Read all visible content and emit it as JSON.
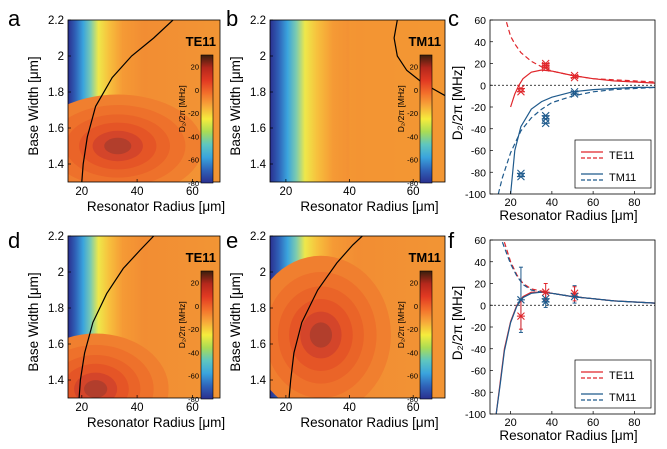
{
  "figure": {
    "colorbar_units_label": "D₂/2π [MHz]",
    "colorbar_ticks": [
      "20",
      "0",
      "-20",
      "-40",
      "-60",
      "-80"
    ],
    "colorbar_stops": [
      "#3a1f0c",
      "#b5281c",
      "#e23a22",
      "#f3702b",
      "#f7a93a",
      "#f6ec3c",
      "#a9dc55",
      "#5ec6c0",
      "#3aa4dd",
      "#2f62b8",
      "#2a2f8e"
    ]
  },
  "chart_data": [
    {
      "panel_letter": "a",
      "type": "heatmap",
      "label": "TE11",
      "xlabel": "Resonator Radius [μm]",
      "ylabel": "Base Width [μm]",
      "xlim": [
        15,
        70
      ],
      "ylim": [
        1.3,
        2.2
      ],
      "x_ticks": [
        20,
        40,
        60
      ],
      "y_ticks": [
        1.4,
        1.6,
        1.8,
        2,
        2.2
      ],
      "x_tick_labels": [
        "20",
        "40",
        "60"
      ],
      "y_tick_labels": [
        "1.4",
        "1.6",
        "1.8",
        "2",
        "2.2"
      ],
      "colorbar_range": [
        -80,
        30
      ],
      "zero_contour": [
        [
          20,
          1.3
        ],
        [
          20.5,
          1.4
        ],
        [
          22,
          1.55
        ],
        [
          25,
          1.72
        ],
        [
          31,
          1.88
        ],
        [
          38,
          2.0
        ],
        [
          46,
          2.1
        ],
        [
          53,
          2.2
        ]
      ],
      "hotspot": {
        "x": 33,
        "y": 1.5,
        "rx": 14,
        "ry": 0.13
      }
    },
    {
      "panel_letter": "b",
      "type": "heatmap",
      "label": "TM11",
      "xlabel": "Resonator Radius [μm]",
      "ylabel": "Base Width [μm]",
      "xlim": [
        15,
        70
      ],
      "ylim": [
        1.3,
        2.2
      ],
      "x_ticks": [
        20,
        40,
        60
      ],
      "y_ticks": [
        1.4,
        1.6,
        1.8,
        2,
        2.2
      ],
      "x_tick_labels": [
        "20",
        "40",
        "60"
      ],
      "y_tick_labels": [
        "1.4",
        "1.6",
        "1.8",
        "2",
        "2.2"
      ],
      "colorbar_range": [
        -80,
        30
      ],
      "zero_contour": [
        [
          55,
          2.2
        ],
        [
          54,
          2.1
        ],
        [
          55,
          2.0
        ],
        [
          58,
          1.92
        ],
        [
          63,
          1.85
        ],
        [
          70,
          1.78
        ]
      ],
      "hotspot": null
    },
    {
      "panel_letter": "c",
      "type": "line",
      "xlabel": "Resonator Radius [μm]",
      "ylabel": "D₂/2π [MHz]",
      "xlim": [
        10,
        90
      ],
      "ylim": [
        -100,
        60
      ],
      "x_ticks": [
        20,
        40,
        60,
        80
      ],
      "y_ticks": [
        -100,
        -80,
        -60,
        -40,
        -20,
        0,
        20,
        40,
        60
      ],
      "x_tick_labels": [
        "20",
        "40",
        "60",
        "80"
      ],
      "y_tick_labels": [
        "-100",
        "-80",
        "-60",
        "-40",
        "-20",
        "0",
        "20",
        "40",
        "60"
      ],
      "legend": [
        "TE11",
        "TM11"
      ],
      "legend_position": "lower-right",
      "series": [
        {
          "name": "TE11",
          "color": "#e0262b",
          "style": "solid",
          "x": [
            20,
            22,
            24,
            26,
            30,
            35,
            40,
            50,
            60,
            70,
            80,
            90
          ],
          "y": [
            -20,
            -8,
            0,
            6,
            12,
            14,
            13,
            9,
            6,
            4,
            3,
            2
          ]
        },
        {
          "name": "TE11",
          "color": "#e0262b",
          "style": "dashed",
          "x": [
            18,
            20,
            22,
            25,
            30,
            35,
            40,
            50,
            60,
            70,
            80,
            90
          ],
          "y": [
            58,
            45,
            38,
            30,
            22,
            17,
            13,
            9,
            6,
            5,
            4,
            3
          ]
        },
        {
          "name": "TM11",
          "color": "#1f5a8c",
          "style": "solid",
          "x": [
            20,
            22,
            25,
            30,
            35,
            40,
            50,
            60,
            70,
            80,
            90
          ],
          "y": [
            -100,
            -60,
            -38,
            -22,
            -15,
            -11,
            -6,
            -4,
            -3,
            -2,
            -2
          ]
        },
        {
          "name": "TM11",
          "color": "#1f5a8c",
          "style": "dashed",
          "x": [
            14,
            16,
            20,
            25,
            30,
            35,
            40,
            50,
            60,
            70,
            80,
            90
          ],
          "y": [
            -100,
            -85,
            -62,
            -42,
            -30,
            -22,
            -16,
            -10,
            -6,
            -4,
            -3,
            -2
          ]
        }
      ],
      "markers": [
        {
          "series": "TE11",
          "color": "#e0262b",
          "points": [
            [
              25,
              -3
            ],
            [
              25,
              -6
            ],
            [
              37,
              18
            ],
            [
              37,
              20
            ],
            [
              37,
              16
            ],
            [
              51,
              9
            ],
            [
              51,
              7
            ]
          ]
        },
        {
          "series": "TM11",
          "color": "#1f5a8c",
          "points": [
            [
              25,
              -81
            ],
            [
              25,
              -84
            ],
            [
              37,
              -28
            ],
            [
              37,
              -31
            ],
            [
              37,
              -35
            ],
            [
              51,
              -6
            ],
            [
              51,
              -8
            ]
          ]
        }
      ],
      "error_bars": []
    },
    {
      "panel_letter": "d",
      "type": "heatmap",
      "label": "TE11",
      "xlabel": "Resonator Radius [μm]",
      "ylabel": "Base Width [μm]",
      "xlim": [
        15,
        70
      ],
      "ylim": [
        1.3,
        2.2
      ],
      "x_ticks": [
        20,
        40,
        60
      ],
      "y_ticks": [
        1.4,
        1.6,
        1.8,
        2,
        2.2
      ],
      "x_tick_labels": [
        "20",
        "40",
        "60"
      ],
      "y_tick_labels": [
        "1.4",
        "1.6",
        "1.8",
        "2",
        "2.2"
      ],
      "colorbar_range": [
        -80,
        30
      ],
      "zero_contour": [
        [
          19,
          1.3
        ],
        [
          19.5,
          1.4
        ],
        [
          21,
          1.55
        ],
        [
          24,
          1.72
        ],
        [
          29,
          1.88
        ],
        [
          35,
          2.02
        ],
        [
          41,
          2.12
        ],
        [
          46,
          2.2
        ]
      ],
      "hotspot": {
        "x": 25,
        "y": 1.35,
        "rx": 12,
        "ry": 0.14
      }
    },
    {
      "panel_letter": "e",
      "type": "heatmap",
      "label": "TM11",
      "xlabel": "Resonator Radius [μm]",
      "ylabel": "Base Width [μm]",
      "xlim": [
        15,
        70
      ],
      "ylim": [
        1.3,
        2.2
      ],
      "x_ticks": [
        20,
        40,
        60
      ],
      "y_ticks": [
        1.4,
        1.6,
        1.8,
        2,
        2.2
      ],
      "x_tick_labels": [
        "20",
        "40",
        "60"
      ],
      "y_tick_labels": [
        "1.4",
        "1.6",
        "1.8",
        "2",
        "2.2"
      ],
      "colorbar_range": [
        -80,
        30
      ],
      "zero_contour": [
        [
          21,
          1.3
        ],
        [
          21.5,
          1.4
        ],
        [
          22.5,
          1.55
        ],
        [
          25,
          1.72
        ],
        [
          30,
          1.9
        ],
        [
          36,
          2.05
        ],
        [
          41,
          2.15
        ],
        [
          44,
          2.2
        ]
      ],
      "hotspot": {
        "x": 31,
        "y": 1.65,
        "rx": 10,
        "ry": 0.2
      }
    },
    {
      "panel_letter": "f",
      "type": "line",
      "xlabel": "Resonator Radius [μm]",
      "ylabel": "D₂/2π [MHz]",
      "xlim": [
        10,
        90
      ],
      "ylim": [
        -100,
        60
      ],
      "x_ticks": [
        20,
        40,
        60,
        80
      ],
      "y_ticks": [
        -100,
        -80,
        -60,
        -40,
        -20,
        0,
        20,
        40,
        60
      ],
      "x_tick_labels": [
        "20",
        "40",
        "60",
        "80"
      ],
      "y_tick_labels": [
        "-100",
        "-80",
        "-60",
        "-40",
        "-20",
        "0",
        "20",
        "40",
        "60"
      ],
      "legend": [
        "TE11",
        "TM11"
      ],
      "legend_position": "lower-right",
      "series": [
        {
          "name": "TE11",
          "color": "#e0262b",
          "style": "solid",
          "x": [
            13,
            15,
            17,
            20,
            23,
            26,
            30,
            35,
            40,
            50,
            60,
            70,
            80,
            90
          ],
          "y": [
            -100,
            -70,
            -40,
            -15,
            0,
            8,
            12,
            12,
            11,
            8,
            6,
            4,
            3,
            2
          ]
        },
        {
          "name": "TE11",
          "color": "#e0262b",
          "style": "dashed",
          "x": [
            17,
            20,
            23,
            26,
            30,
            35,
            40,
            50,
            60,
            70,
            80,
            90
          ],
          "y": [
            58,
            40,
            28,
            20,
            15,
            13,
            11,
            8,
            6,
            4,
            3,
            2
          ]
        },
        {
          "name": "TM11",
          "color": "#1f5a8c",
          "style": "solid",
          "x": [
            13,
            15,
            17,
            20,
            23,
            26,
            30,
            35,
            40,
            50,
            60,
            70,
            80,
            90
          ],
          "y": [
            -100,
            -72,
            -42,
            -16,
            -1,
            7,
            11,
            12,
            11,
            8,
            6,
            4,
            3,
            2
          ]
        },
        {
          "name": "TM11",
          "color": "#1f5a8c",
          "style": "dashed",
          "x": [
            16,
            20,
            23,
            26,
            30,
            35,
            40,
            50,
            60,
            70,
            80,
            90
          ],
          "y": [
            58,
            38,
            27,
            19,
            14,
            12,
            11,
            8,
            6,
            4,
            3,
            2
          ]
        }
      ],
      "markers": [
        {
          "series": "TE11",
          "color": "#e0262b",
          "points": [
            [
              25,
              -10
            ],
            [
              37,
              12
            ],
            [
              51,
              11
            ]
          ]
        },
        {
          "series": "TM11",
          "color": "#1f5a8c",
          "points": [
            [
              25,
              5
            ],
            [
              37,
              3
            ],
            [
              37,
              6
            ],
            [
              51,
              8
            ]
          ]
        }
      ],
      "error_bars": [
        {
          "color": "#1f5a8c",
          "x": 25,
          "low": -25,
          "high": 35
        },
        {
          "color": "#e0262b",
          "x": 25,
          "low": -22,
          "high": 5
        },
        {
          "color": "#1f5a8c",
          "x": 37,
          "low": -2,
          "high": 12
        },
        {
          "color": "#e0262b",
          "x": 37,
          "low": 5,
          "high": 20
        },
        {
          "color": "#1f5a8c",
          "x": 51,
          "low": 2,
          "high": 18
        },
        {
          "color": "#e0262b",
          "x": 51,
          "low": 4,
          "high": 17
        }
      ]
    }
  ]
}
